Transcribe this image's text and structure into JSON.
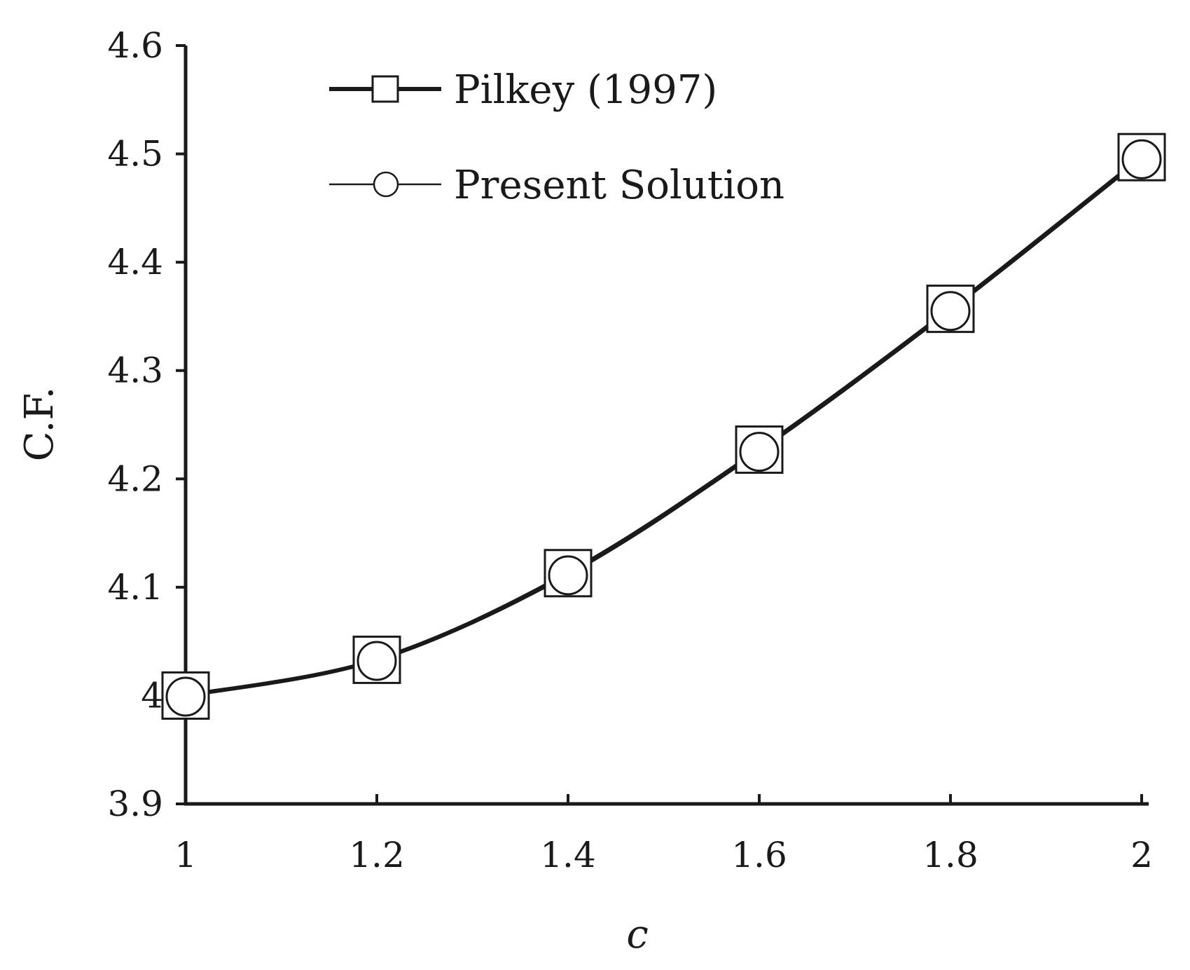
{
  "chart_data": {
    "type": "line",
    "title": "",
    "xlabel": "c",
    "ylabel": "C.F.",
    "x": [
      1,
      1.2,
      1.4,
      1.6,
      1.8,
      2
    ],
    "xlim": [
      1,
      2
    ],
    "ylim": [
      3.9,
      4.6
    ],
    "x_ticks": [
      "1",
      "1.2",
      "1.4",
      "1.6",
      "1.8",
      "2"
    ],
    "y_ticks": [
      "3.9",
      "4",
      "4.1",
      "4.2",
      "4.3",
      "4.4",
      "4.5",
      "4.6"
    ],
    "grid": false,
    "legend_position": "top-left",
    "series": [
      {
        "name": "Pilkey (1997)",
        "marker": "square",
        "values": [
          4.0,
          4.033,
          4.113,
          4.227,
          4.357,
          4.497
        ]
      },
      {
        "name": "Present Solution",
        "marker": "circle",
        "values": [
          3.999,
          4.032,
          4.111,
          4.225,
          4.355,
          4.495
        ]
      }
    ],
    "colors": {
      "line": "#1a1a1a",
      "axis": "#1a1a1a",
      "marker_fill": "#ffffff"
    }
  }
}
